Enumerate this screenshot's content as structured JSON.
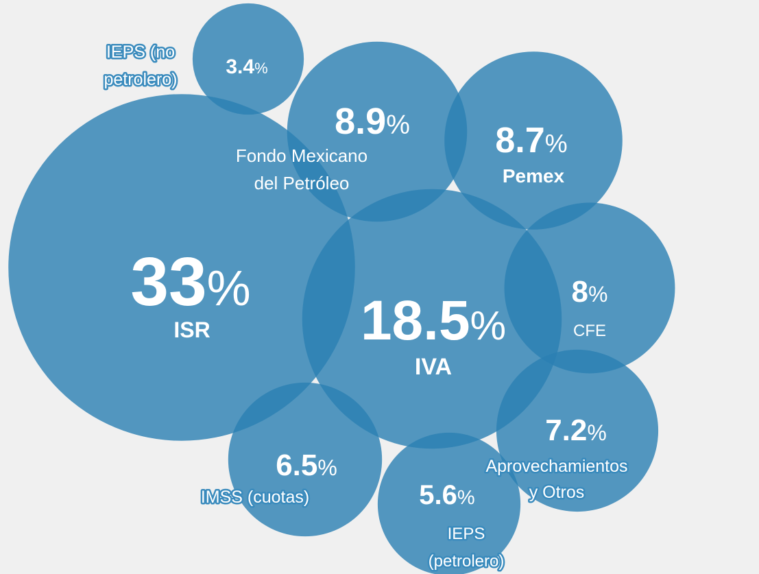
{
  "chart_data": {
    "type": "bubble",
    "unit": "%",
    "color": "#2a7fb3",
    "categories": [
      "ISR",
      "IEPS (no\npetrolero)",
      "Fondo Mexicano\ndel Petróleo",
      "Pemex",
      "IVA",
      "CFE",
      "Aprovechamientos\ny Otros",
      "IMSS (cuotas)",
      "IEPS\n(petrolero)"
    ],
    "values": [
      33,
      3.4,
      8.9,
      8.7,
      18.5,
      8,
      7.2,
      6.5,
      5.6
    ]
  }
}
